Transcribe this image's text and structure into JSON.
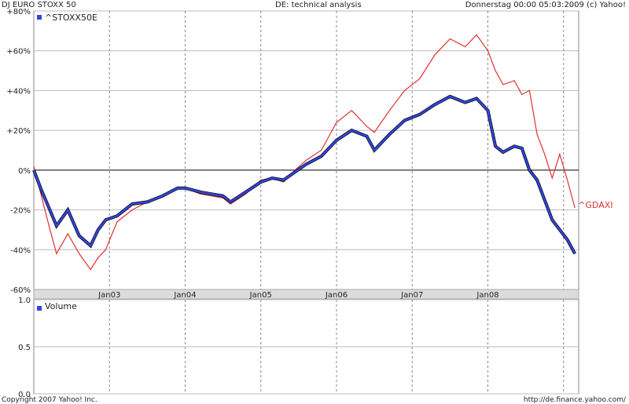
{
  "header": {
    "left": "DJ EURO STOXX 50",
    "center": "DE: technical analysis",
    "right": "Donnerstag 00:00 05:03:2009 (c) Yahoo!"
  },
  "footer": {
    "left": "Copyright 2007 Yahoo! Inc.",
    "right": "http://de.finance.yahoo.com/"
  },
  "colors": {
    "primary": "#3344dd",
    "compare": "#e03030",
    "grid": "#999999",
    "axis_band": "#dcdcdc"
  },
  "chart_data": [
    {
      "type": "line",
      "title": "",
      "xlabel": "",
      "ylabel": "",
      "ylim": [
        -60,
        80
      ],
      "y_ticks": [
        {
          "v": 80,
          "label": "+80%"
        },
        {
          "v": 60,
          "label": "+60%"
        },
        {
          "v": 40,
          "label": "+40%"
        },
        {
          "v": 20,
          "label": "+20%"
        },
        {
          "v": 0,
          "label": "0%"
        },
        {
          "v": -20,
          "label": "-20%"
        },
        {
          "v": -40,
          "label": "-40%"
        },
        {
          "v": -60,
          "label": "-60%"
        }
      ],
      "xlim": [
        2002.0,
        2009.2
      ],
      "x_ticks": [
        {
          "v": 2003.0,
          "label": "Jan03"
        },
        {
          "v": 2004.0,
          "label": "Jan04"
        },
        {
          "v": 2005.0,
          "label": "Jan05"
        },
        {
          "v": 2006.0,
          "label": "Jan06"
        },
        {
          "v": 2007.0,
          "label": "Jan07"
        },
        {
          "v": 2008.0,
          "label": "Jan08"
        },
        {
          "v": 2009.0,
          "label": ""
        }
      ],
      "grid": true,
      "legend": "top-left",
      "series": [
        {
          "name": "^STOXX50E",
          "color": "#3344dd",
          "points": [
            [
              2002.0,
              0
            ],
            [
              2002.1,
              -10
            ],
            [
              2002.2,
              -19
            ],
            [
              2002.3,
              -28
            ],
            [
              2002.45,
              -20
            ],
            [
              2002.6,
              -33
            ],
            [
              2002.75,
              -38
            ],
            [
              2002.85,
              -30
            ],
            [
              2002.95,
              -25
            ],
            [
              2003.1,
              -23
            ],
            [
              2003.3,
              -17
            ],
            [
              2003.5,
              -16
            ],
            [
              2003.7,
              -13
            ],
            [
              2003.9,
              -9
            ],
            [
              2004.0,
              -9
            ],
            [
              2004.2,
              -11
            ],
            [
              2004.35,
              -12
            ],
            [
              2004.5,
              -13
            ],
            [
              2004.6,
              -16
            ],
            [
              2004.8,
              -11
            ],
            [
              2005.0,
              -6
            ],
            [
              2005.15,
              -4
            ],
            [
              2005.3,
              -5
            ],
            [
              2005.45,
              -1
            ],
            [
              2005.6,
              3
            ],
            [
              2005.8,
              7
            ],
            [
              2006.0,
              15
            ],
            [
              2006.2,
              20
            ],
            [
              2006.4,
              17
            ],
            [
              2006.5,
              10
            ],
            [
              2006.7,
              18
            ],
            [
              2006.9,
              25
            ],
            [
              2007.1,
              28
            ],
            [
              2007.3,
              33
            ],
            [
              2007.5,
              37
            ],
            [
              2007.7,
              34
            ],
            [
              2007.85,
              36
            ],
            [
              2008.0,
              30
            ],
            [
              2008.1,
              12
            ],
            [
              2008.2,
              9
            ],
            [
              2008.35,
              12
            ],
            [
              2008.45,
              11
            ],
            [
              2008.55,
              0
            ],
            [
              2008.65,
              -5
            ],
            [
              2008.75,
              -15
            ],
            [
              2008.85,
              -25
            ],
            [
              2008.95,
              -30
            ],
            [
              2009.05,
              -35
            ],
            [
              2009.15,
              -42
            ]
          ]
        },
        {
          "name": "^GDAXI",
          "color": "#e03030",
          "points": [
            [
              2002.0,
              2
            ],
            [
              2002.1,
              -13
            ],
            [
              2002.2,
              -28
            ],
            [
              2002.3,
              -42
            ],
            [
              2002.45,
              -32
            ],
            [
              2002.6,
              -42
            ],
            [
              2002.75,
              -50
            ],
            [
              2002.85,
              -44
            ],
            [
              2002.95,
              -40
            ],
            [
              2003.1,
              -26
            ],
            [
              2003.3,
              -20
            ],
            [
              2003.5,
              -16
            ],
            [
              2003.7,
              -13
            ],
            [
              2003.9,
              -9
            ],
            [
              2004.0,
              -9
            ],
            [
              2004.2,
              -12
            ],
            [
              2004.35,
              -13
            ],
            [
              2004.5,
              -14
            ],
            [
              2004.6,
              -17
            ],
            [
              2004.8,
              -12
            ],
            [
              2005.0,
              -5
            ],
            [
              2005.15,
              -4
            ],
            [
              2005.3,
              -6
            ],
            [
              2005.45,
              0
            ],
            [
              2005.6,
              5
            ],
            [
              2005.8,
              10
            ],
            [
              2006.0,
              24
            ],
            [
              2006.2,
              30
            ],
            [
              2006.4,
              22
            ],
            [
              2006.5,
              19
            ],
            [
              2006.7,
              30
            ],
            [
              2006.9,
              40
            ],
            [
              2007.1,
              46
            ],
            [
              2007.3,
              58
            ],
            [
              2007.5,
              66
            ],
            [
              2007.7,
              62
            ],
            [
              2007.85,
              68
            ],
            [
              2008.0,
              60
            ],
            [
              2008.1,
              50
            ],
            [
              2008.2,
              43
            ],
            [
              2008.35,
              45
            ],
            [
              2008.45,
              38
            ],
            [
              2008.55,
              40
            ],
            [
              2008.65,
              18
            ],
            [
              2008.75,
              8
            ],
            [
              2008.85,
              -4
            ],
            [
              2008.95,
              8
            ],
            [
              2009.05,
              -5
            ],
            [
              2009.15,
              -19
            ]
          ],
          "end_label": "^GDAXI"
        }
      ]
    },
    {
      "type": "bar",
      "title": "",
      "ylim": [
        0.0,
        1.0
      ],
      "y_ticks": [
        {
          "v": 1.0,
          "label": "1.0"
        },
        {
          "v": 0.5,
          "label": "0.5"
        },
        {
          "v": 0.0,
          "label": "0.0"
        }
      ],
      "legend": "top-left",
      "series": [
        {
          "name": "Volume",
          "color": "#3344dd",
          "values": []
        }
      ]
    }
  ]
}
